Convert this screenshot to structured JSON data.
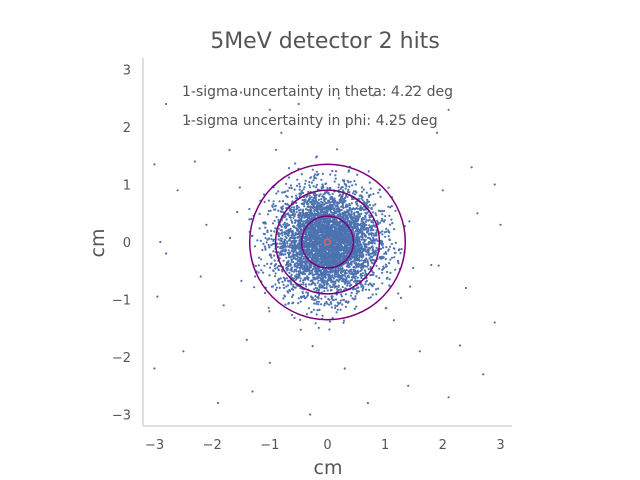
{
  "chart_data": {
    "type": "scatter",
    "title": "5MeV detector 2 hits",
    "xlabel": "cm",
    "ylabel": "cm",
    "xlim": [
      -3.2,
      3.2
    ],
    "ylim": [
      -3.2,
      3.2
    ],
    "xticks": [
      -3,
      -2,
      -1,
      0,
      1,
      2,
      3
    ],
    "yticks": [
      -3,
      -2,
      -1,
      0,
      1,
      2,
      3
    ],
    "xtick_labels": [
      "−3",
      "−2",
      "−1",
      "0",
      "1",
      "2",
      "3"
    ],
    "ytick_labels": [
      "−3",
      "−2",
      "−1",
      "0",
      "1",
      "2",
      "3"
    ],
    "grid": false,
    "annotations": [
      "1-sigma uncertainty in theta: 4.22 deg",
      "1-sigma uncertainty in phi: 4.25 deg"
    ],
    "point_color": "#4c72b0",
    "circles": [
      {
        "radius": 0.05,
        "color": "#e06060"
      },
      {
        "radius": 0.45,
        "color": "#7b007b"
      },
      {
        "radius": 0.9,
        "color": "#7b007b"
      },
      {
        "radius": 1.35,
        "color": "#7b007b"
      }
    ],
    "outliers": [
      [
        -3.0,
        1.35
      ],
      [
        -2.9,
        0.0
      ],
      [
        -2.95,
        -0.95
      ],
      [
        -3.0,
        -2.2
      ],
      [
        -2.8,
        2.4
      ],
      [
        -2.3,
        1.4
      ],
      [
        -2.0,
        2.5
      ],
      [
        -1.5,
        2.6
      ],
      [
        -1.0,
        2.3
      ],
      [
        -0.5,
        2.4
      ],
      [
        0.2,
        2.5
      ],
      [
        0.8,
        2.55
      ],
      [
        1.5,
        2.7
      ],
      [
        2.1,
        2.3
      ],
      [
        2.5,
        1.3
      ],
      [
        2.9,
        1.0
      ],
      [
        3.0,
        0.3
      ],
      [
        2.9,
        -1.4
      ],
      [
        2.7,
        -2.3
      ],
      [
        2.1,
        -2.7
      ],
      [
        1.4,
        -2.5
      ],
      [
        0.7,
        -2.8
      ],
      [
        -0.3,
        -3.0
      ],
      [
        -1.3,
        -2.6
      ],
      [
        -1.9,
        -2.8
      ],
      [
        -2.5,
        -1.9
      ],
      [
        -2.6,
        0.9
      ],
      [
        -2.2,
        -0.6
      ],
      [
        2.4,
        -0.8
      ],
      [
        2.6,
        0.5
      ],
      [
        -2.4,
        2.1
      ],
      [
        -1.7,
        1.6
      ],
      [
        1.9,
        1.9
      ],
      [
        1.6,
        -1.9
      ],
      [
        -1.4,
        -1.7
      ],
      [
        2.3,
        -1.8
      ],
      [
        -2.8,
        -0.2
      ],
      [
        -1.0,
        -2.1
      ],
      [
        0.3,
        -2.2
      ],
      [
        1.1,
        2.1
      ],
      [
        -0.8,
        1.9
      ],
      [
        2.0,
        0.9
      ],
      [
        -2.1,
        0.3
      ],
      [
        1.8,
        -0.4
      ],
      [
        -1.8,
        -1.1
      ]
    ],
    "series": [
      {
        "n_points": 4600,
        "sigma": 0.45
      }
    ]
  }
}
